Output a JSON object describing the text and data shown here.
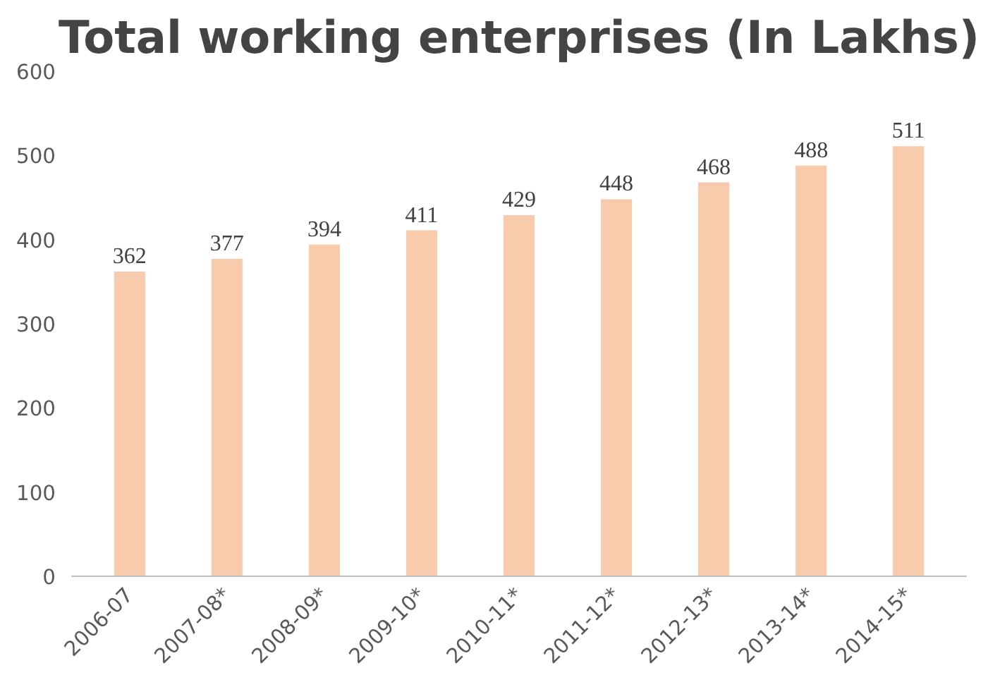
{
  "chart_data": {
    "type": "bar",
    "title": "Total working enterprises (In Lakhs)",
    "categories": [
      "2006-07",
      "2007-08*",
      "2008-09*",
      "2009-10*",
      "2010-11*",
      "2011-12*",
      "2012-13*",
      "2013-14*",
      "2014-15*"
    ],
    "values": [
      362,
      377,
      394,
      411,
      429,
      448,
      468,
      488,
      511
    ],
    "color": "#f8cbad",
    "ylim": [
      0,
      600
    ],
    "yticks": [
      0,
      100,
      200,
      300,
      400,
      500,
      600
    ],
    "grid": false,
    "data_labels": true
  }
}
